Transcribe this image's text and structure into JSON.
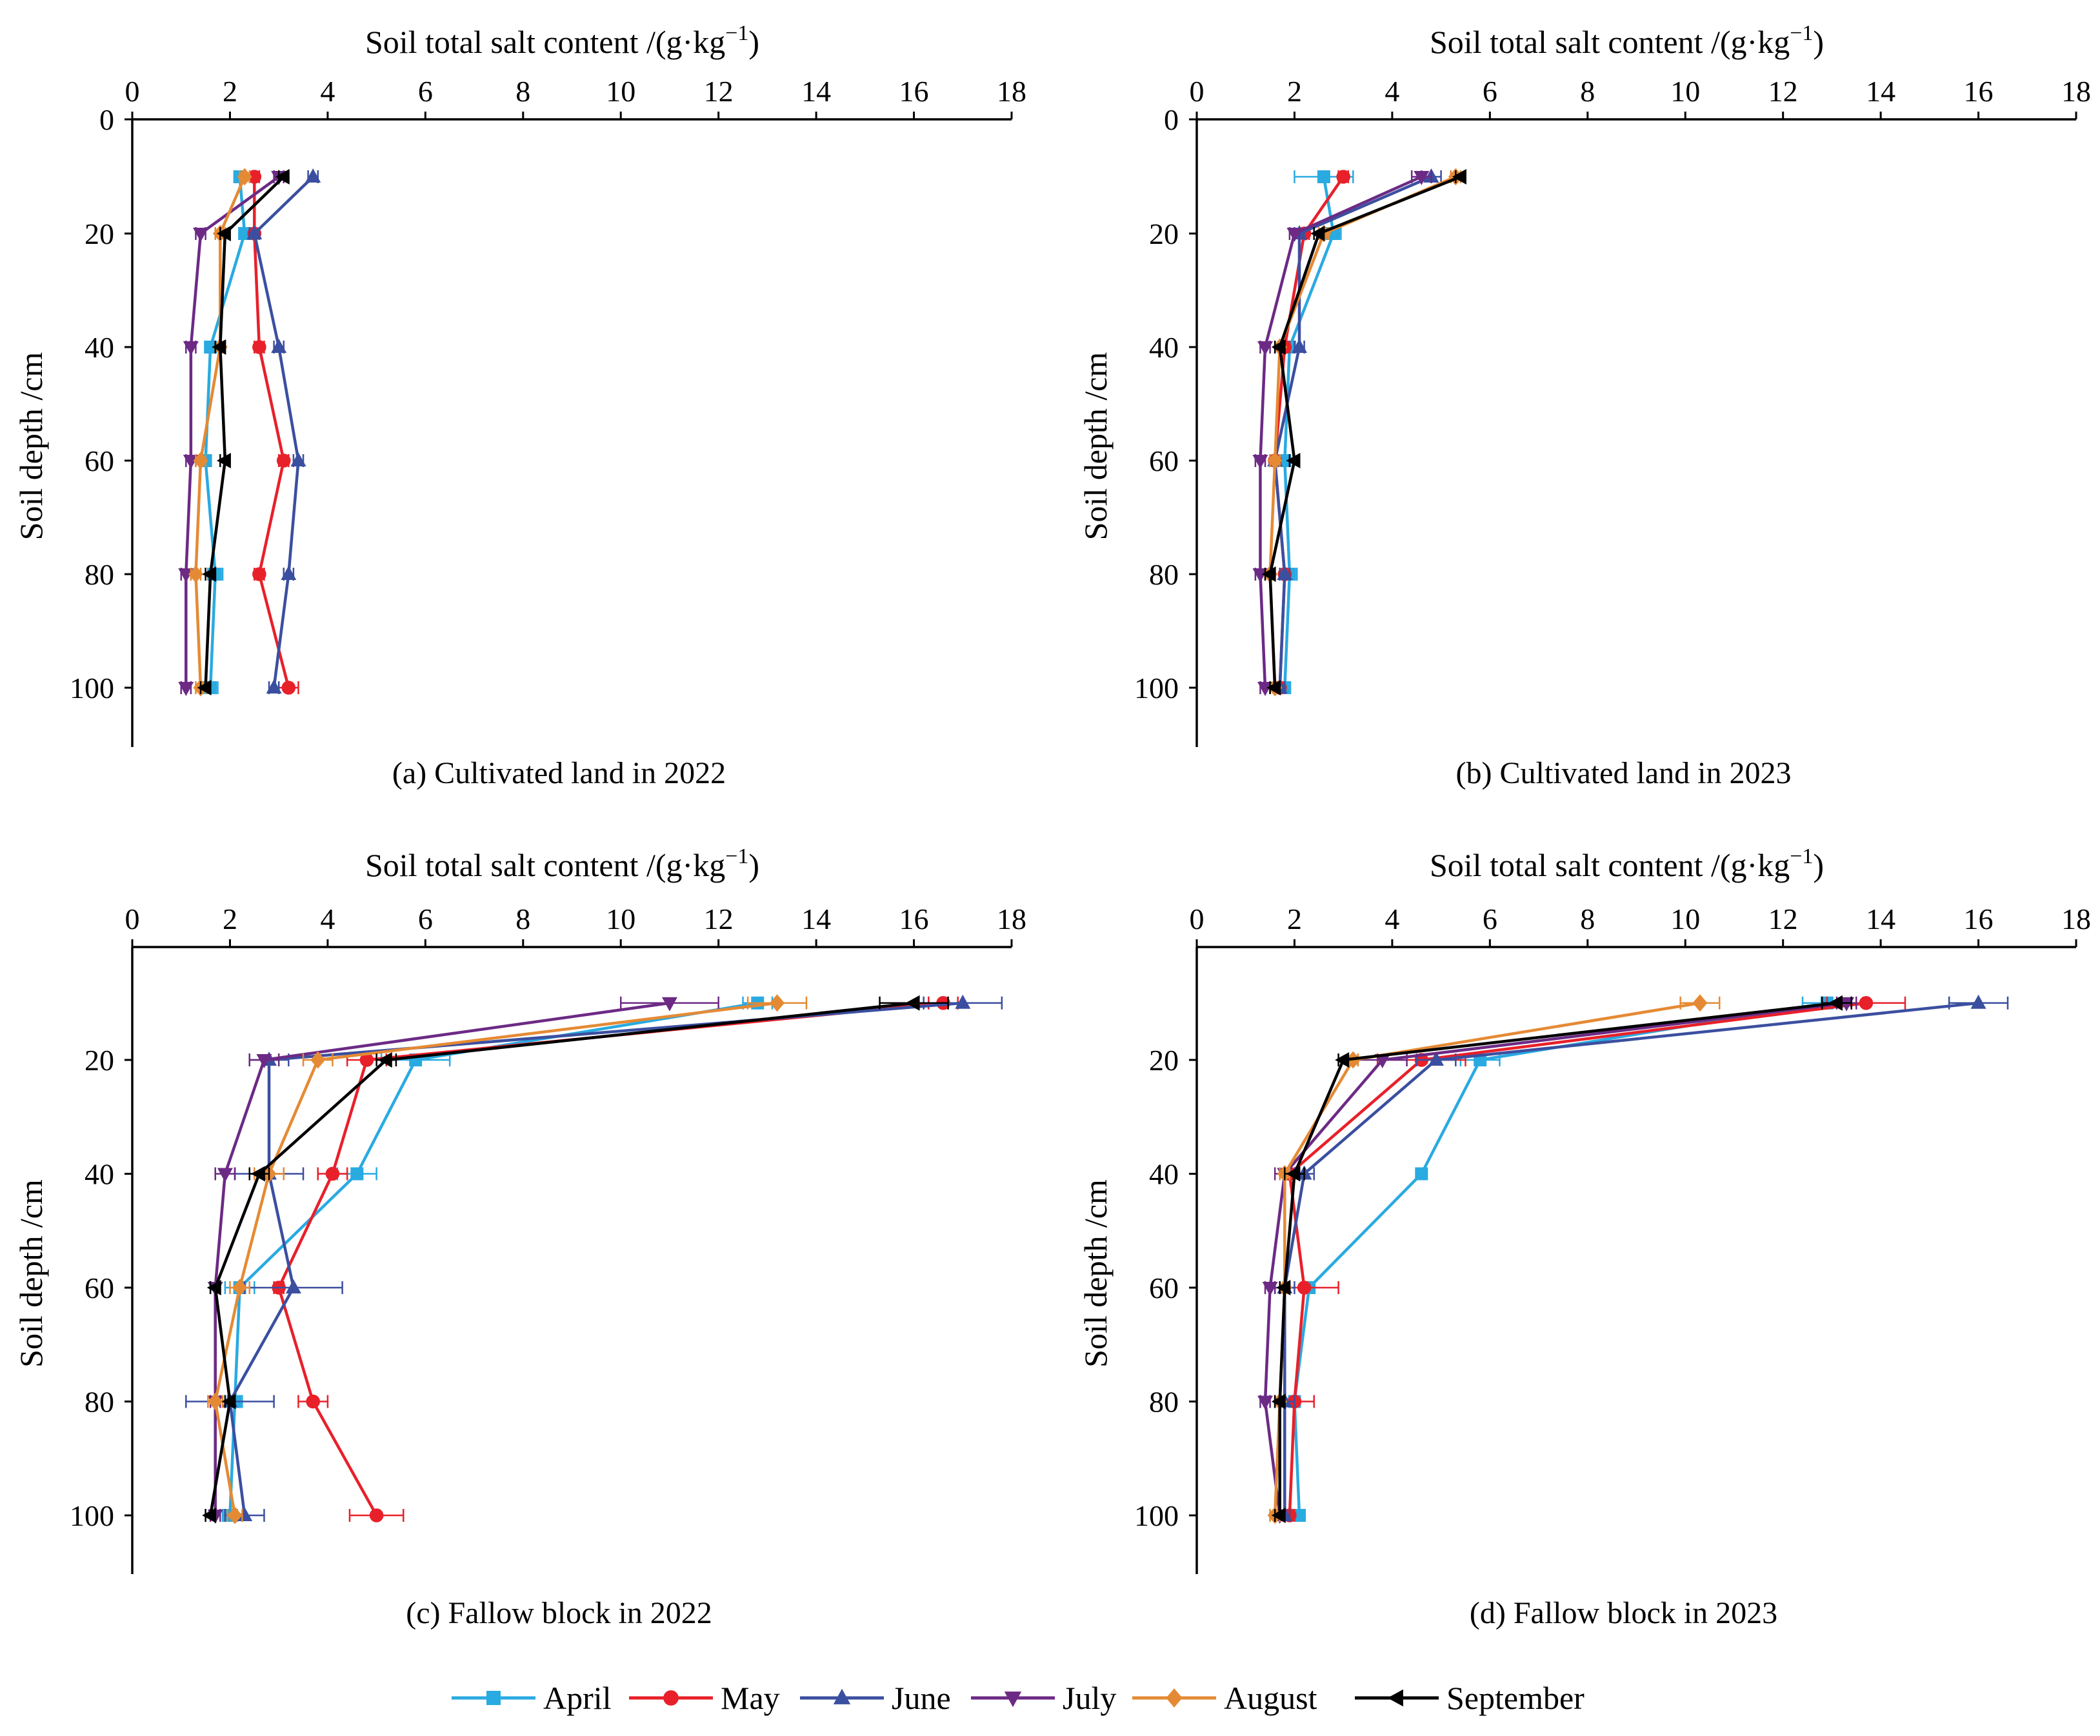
{
  "figure": {
    "depth_axis_label": "Soil depth /cm",
    "salt_axis_label": "Soil total salt content /(g·kg⁻¹)"
  },
  "legend": [
    {
      "name": "April",
      "color": "#29AAE1",
      "marker": "square"
    },
    {
      "name": "May",
      "color": "#E8202A",
      "marker": "circle"
    },
    {
      "name": "June",
      "color": "#3B4FA0",
      "marker": "triangle-up"
    },
    {
      "name": "July",
      "color": "#6C2A85",
      "marker": "triangle-down"
    },
    {
      "name": "August",
      "color": "#E58A34",
      "marker": "diamond"
    },
    {
      "name": "September",
      "color": "#000000",
      "marker": "triangle-left"
    }
  ],
  "chart_data": [
    {
      "type": "line",
      "title": "(a) Cultivated land in 2022",
      "xlabel": "Soil total salt content /(g·kg⁻¹)",
      "ylabel": "Soil depth /cm",
      "xlim": [
        0,
        18
      ],
      "ylim": [
        0,
        110
      ],
      "x_ticks": [
        "0",
        "2",
        "4",
        "6",
        "8",
        "10",
        "12",
        "14",
        "16",
        "18"
      ],
      "y_ticks": [
        "0",
        "20",
        "40",
        "60",
        "80",
        "100"
      ],
      "y_reversed": true,
      "depths": [
        10,
        20,
        40,
        60,
        80,
        100
      ],
      "series": [
        {
          "name": "April",
          "values": [
            2.2,
            2.3,
            1.6,
            1.5,
            1.7,
            1.6
          ],
          "errors": [
            0.1,
            0.1,
            0.1,
            0.1,
            0.15,
            0.15
          ]
        },
        {
          "name": "May",
          "values": [
            2.5,
            2.5,
            2.6,
            3.1,
            2.6,
            3.2
          ],
          "errors": [
            0.1,
            0.1,
            0.1,
            0.1,
            0.1,
            0.2
          ]
        },
        {
          "name": "June",
          "values": [
            3.7,
            2.5,
            3.0,
            3.4,
            3.2,
            2.9
          ],
          "errors": [
            0.1,
            0.1,
            0.1,
            0.1,
            0.1,
            0.1
          ]
        },
        {
          "name": "July",
          "values": [
            3.0,
            1.4,
            1.2,
            1.2,
            1.1,
            1.1
          ],
          "errors": [
            0.1,
            0.1,
            0.1,
            0.1,
            0.1,
            0.1
          ]
        },
        {
          "name": "August",
          "values": [
            2.3,
            1.8,
            1.8,
            1.4,
            1.3,
            1.4
          ],
          "errors": [
            0.1,
            0.1,
            0.1,
            0.1,
            0.1,
            0.1
          ]
        },
        {
          "name": "September",
          "values": [
            3.1,
            1.9,
            1.8,
            1.9,
            1.6,
            1.5
          ],
          "errors": [
            0.1,
            0.1,
            0.1,
            0.1,
            0.1,
            0.1
          ]
        }
      ]
    },
    {
      "type": "line",
      "title": "(b) Cultivated land in 2023",
      "xlabel": "Soil total salt content /(g·kg⁻¹)",
      "ylabel": "Soil depth /cm",
      "xlim": [
        0,
        18
      ],
      "ylim": [
        0,
        110
      ],
      "x_ticks": [
        "0",
        "2",
        "4",
        "6",
        "8",
        "10",
        "12",
        "14",
        "16",
        "18"
      ],
      "y_ticks": [
        "0",
        "20",
        "40",
        "60",
        "80",
        "100"
      ],
      "y_reversed": true,
      "depths": [
        10,
        20,
        40,
        60,
        80,
        100
      ],
      "series": [
        {
          "name": "April",
          "values": [
            2.6,
            2.8,
            1.9,
            1.8,
            1.9,
            1.8
          ],
          "errors": [
            0.6,
            0.15,
            0.1,
            0.1,
            0.15,
            0.1
          ]
        },
        {
          "name": "May",
          "values": [
            3.0,
            2.2,
            1.8,
            1.6,
            1.8,
            1.7
          ],
          "errors": [
            0.1,
            0.1,
            0.1,
            0.1,
            0.1,
            0.1
          ]
        },
        {
          "name": "June",
          "values": [
            4.8,
            2.1,
            2.1,
            1.6,
            1.8,
            1.7
          ],
          "errors": [
            0.2,
            0.1,
            0.1,
            0.1,
            0.1,
            0.1
          ]
        },
        {
          "name": "July",
          "values": [
            4.6,
            2.0,
            1.4,
            1.3,
            1.3,
            1.4
          ],
          "errors": [
            0.2,
            0.1,
            0.1,
            0.1,
            0.1,
            0.1
          ]
        },
        {
          "name": "August",
          "values": [
            5.3,
            2.6,
            1.7,
            1.6,
            1.5,
            1.6
          ],
          "errors": [
            0.1,
            0.1,
            0.1,
            0.1,
            0.1,
            0.1
          ]
        },
        {
          "name": "September",
          "values": [
            5.4,
            2.5,
            1.7,
            2.0,
            1.5,
            1.6
          ],
          "errors": [
            0.1,
            0.1,
            0.1,
            0.1,
            0.1,
            0.1
          ]
        }
      ]
    },
    {
      "type": "line",
      "title": "(c) Fallow block  in 2022",
      "xlabel": "Soil total salt content /(g·kg⁻¹)",
      "ylabel": "Soil depth /cm",
      "xlim": [
        0,
        18
      ],
      "ylim": [
        0,
        110
      ],
      "x_ticks": [
        "0",
        "2",
        "4",
        "6",
        "8",
        "10",
        "12",
        "14",
        "16",
        "18"
      ],
      "y_ticks": [
        "20",
        "40",
        "60",
        "80",
        "100"
      ],
      "y_reversed": true,
      "depths": [
        10,
        20,
        40,
        60,
        80,
        100
      ],
      "series": [
        {
          "name": "April",
          "values": [
            12.8,
            5.8,
            4.6,
            2.2,
            2.1,
            2.0
          ],
          "errors": [
            0.3,
            0.7,
            0.4,
            0.3,
            0.15,
            0.15
          ]
        },
        {
          "name": "May",
          "values": [
            16.6,
            4.8,
            4.1,
            3.0,
            3.7,
            5.0
          ],
          "errors": [
            0.3,
            0.4,
            0.3,
            0.1,
            0.3,
            0.55
          ]
        },
        {
          "name": "June",
          "values": [
            17.0,
            2.8,
            2.8,
            3.3,
            2.0,
            2.3
          ],
          "errors": [
            0.8,
            0.4,
            0.7,
            1.0,
            0.9,
            0.4
          ]
        },
        {
          "name": "July",
          "values": [
            11.0,
            2.7,
            1.9,
            1.7,
            1.7,
            1.7
          ],
          "errors": [
            1.0,
            0.3,
            0.2,
            0.1,
            0.1,
            0.1
          ]
        },
        {
          "name": "August",
          "values": [
            13.2,
            3.8,
            2.8,
            2.2,
            1.7,
            2.1
          ],
          "errors": [
            0.6,
            0.3,
            0.3,
            0.2,
            0.15,
            0.15
          ]
        },
        {
          "name": "September",
          "values": [
            16.0,
            5.2,
            2.6,
            1.7,
            2.0,
            1.6
          ],
          "errors": [
            0.7,
            0.2,
            0.2,
            0.1,
            0.1,
            0.1
          ]
        }
      ]
    },
    {
      "type": "line",
      "title": "(d) Fallow block  in 2023",
      "xlabel": "Soil total salt content /(g·kg⁻¹)",
      "ylabel": "Soil depth /cm",
      "xlim": [
        0,
        18
      ],
      "ylim": [
        0,
        110
      ],
      "x_ticks": [
        "0",
        "2",
        "4",
        "6",
        "8",
        "10",
        "12",
        "14",
        "16",
        "18"
      ],
      "y_ticks": [
        "20",
        "40",
        "60",
        "80",
        "100"
      ],
      "y_reversed": true,
      "depths": [
        10,
        20,
        40,
        60,
        80,
        100
      ],
      "series": [
        {
          "name": "April",
          "values": [
            12.9,
            5.8,
            4.6,
            2.3,
            2.0,
            2.1
          ],
          "errors": [
            0.5,
            0.4,
            0.1,
            0.1,
            0.1,
            0.1
          ]
        },
        {
          "name": "May",
          "values": [
            13.7,
            4.6,
            1.9,
            2.2,
            2.0,
            1.9
          ],
          "errors": [
            0.8,
            0.9,
            0.2,
            0.7,
            0.4,
            0.1
          ]
        },
        {
          "name": "June",
          "values": [
            16.0,
            4.9,
            2.2,
            1.8,
            1.8,
            1.8
          ],
          "errors": [
            0.6,
            0.4,
            0.2,
            0.2,
            0.2,
            0.1
          ]
        },
        {
          "name": "July",
          "values": [
            13.3,
            3.8,
            1.8,
            1.5,
            1.4,
            1.7
          ],
          "errors": [
            0.2,
            0.5,
            0.2,
            0.1,
            0.1,
            0.1
          ]
        },
        {
          "name": "August",
          "values": [
            10.3,
            3.2,
            1.8,
            1.8,
            1.7,
            1.6
          ],
          "errors": [
            0.4,
            0.1,
            0.1,
            0.1,
            0.1,
            0.1
          ]
        },
        {
          "name": "September",
          "values": [
            13.1,
            3.0,
            2.0,
            1.8,
            1.7,
            1.7
          ],
          "errors": [
            0.3,
            0.1,
            0.2,
            0.1,
            0.1,
            0.1
          ]
        }
      ]
    }
  ]
}
